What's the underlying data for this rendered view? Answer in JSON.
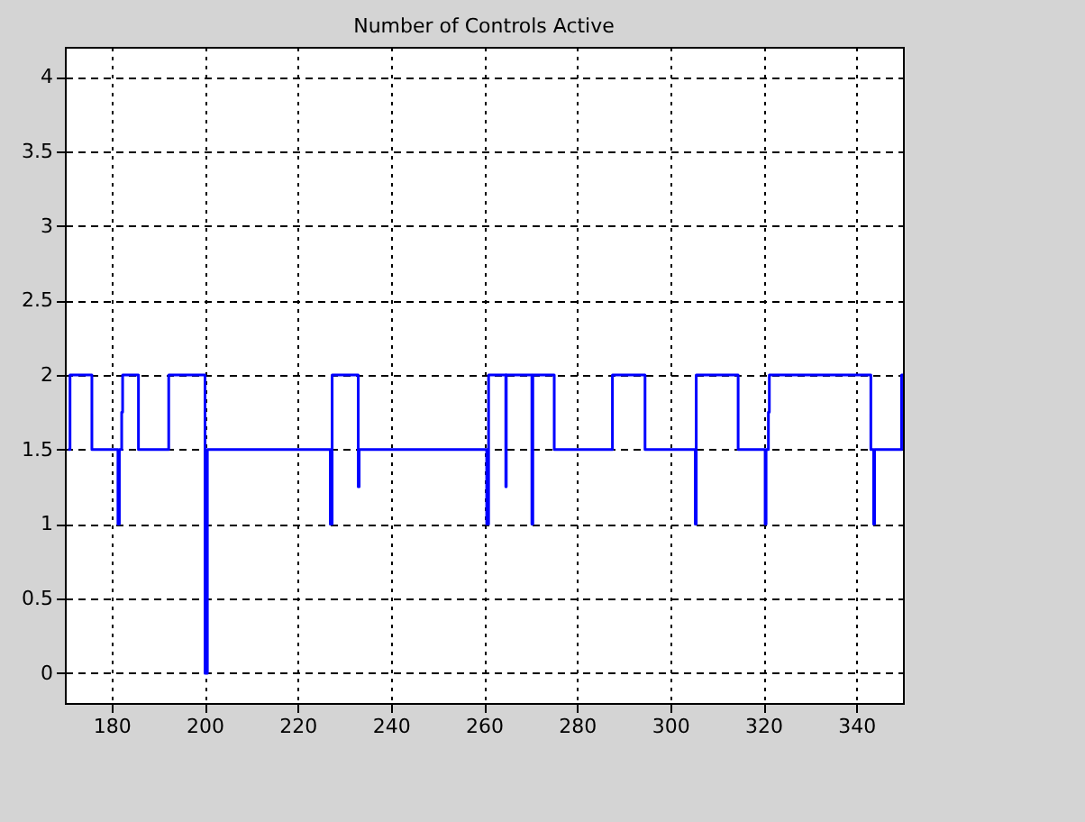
{
  "chart_data": {
    "type": "step",
    "title": "Number of Controls Active",
    "x": [
      170.7,
      171.1,
      175.8,
      181.4,
      181.7,
      182.2,
      182.4,
      185.8,
      192.3,
      200.1,
      200.6,
      227.0,
      227.4,
      233.0,
      233.2,
      260.6,
      261.0,
      264.7,
      264.8,
      270.3,
      270.5,
      275.1,
      287.6,
      294.6,
      305.4,
      305.6,
      314.6,
      320.4,
      320.6,
      321.1,
      321.3,
      343.1,
      343.7,
      343.9,
      349.7,
      350
    ],
    "series": [
      {
        "color": "#0000ff",
        "values": [
          1.5,
          2,
          1.5,
          1,
          1.5,
          1.75,
          2,
          1.5,
          2,
          0,
          1.5,
          1,
          2,
          1.25,
          1.5,
          1,
          2,
          1.25,
          2,
          1,
          2,
          1.5,
          2,
          1.5,
          1,
          2,
          1.5,
          1,
          1.5,
          1.75,
          2,
          1.5,
          1,
          1.5,
          2,
          2
        ]
      }
    ],
    "xlim": [
      170,
      350
    ],
    "xticks": [
      180,
      200,
      220,
      240,
      260,
      280,
      300,
      320,
      340
    ],
    "ylim": [
      -0.2,
      4.2
    ],
    "yticks": [
      0,
      0.5,
      1,
      1.5,
      2,
      2.5,
      3,
      3.5,
      4
    ],
    "grid": true
  }
}
